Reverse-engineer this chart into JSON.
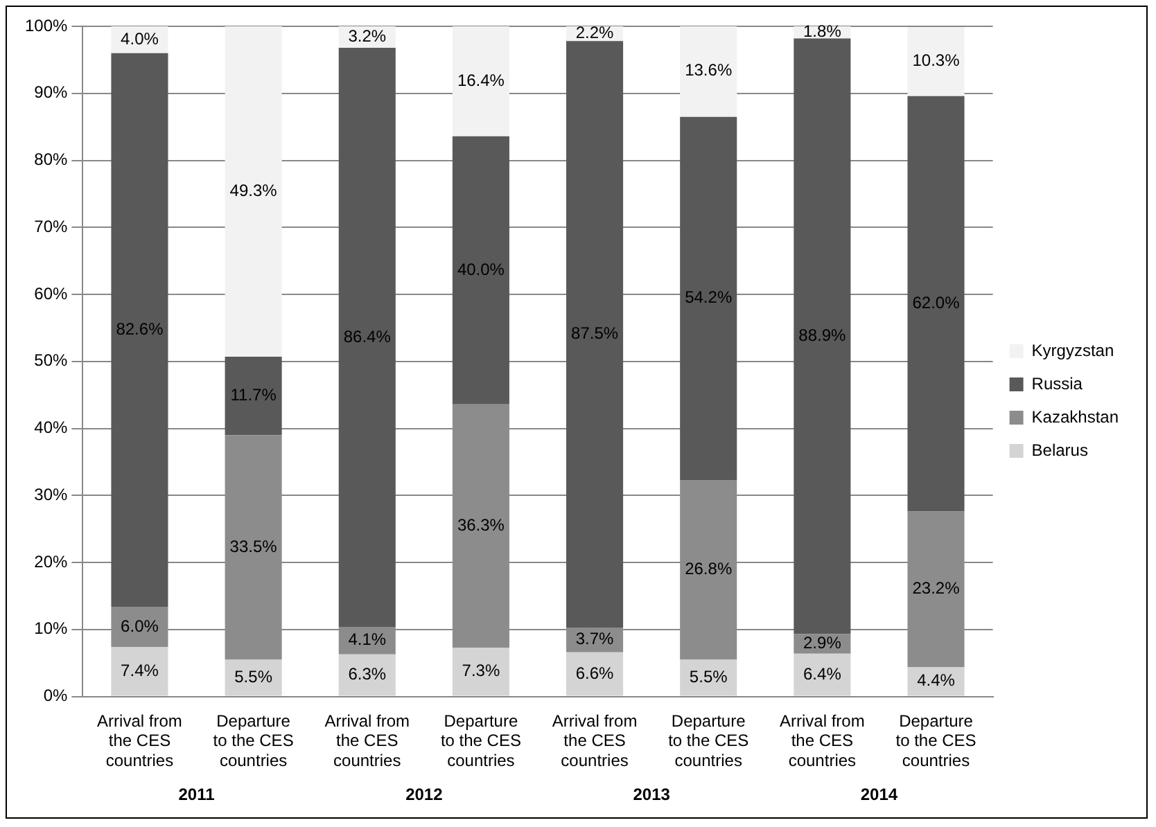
{
  "chart_data": {
    "type": "bar",
    "stacked": true,
    "categories": [
      "Arrival from the CES countries",
      "Departure to the CES countries",
      "Arrival from the CES countries",
      "Departure to the CES countries",
      "Arrival from the CES countries",
      "Departure to the CES countries",
      "Arrival from the CES countries",
      "Departure to the CES countries"
    ],
    "series": [
      {
        "name": "Belarus",
        "color": "#d4d4d4",
        "values": [
          7.4,
          5.5,
          6.3,
          7.3,
          6.6,
          5.5,
          6.4,
          4.4
        ],
        "value_labels": [
          "7.4%",
          "5.5%",
          "6.3%",
          "7.3%",
          "6.6%",
          "5.5%",
          "6.4%",
          "4.4%"
        ]
      },
      {
        "name": "Kazakhstan",
        "color": "#8c8c8c",
        "values": [
          6.0,
          33.5,
          4.1,
          36.3,
          3.7,
          26.8,
          2.9,
          23.2
        ],
        "value_labels": [
          "6.0%",
          "33.5%",
          "4.1%",
          "36.3%",
          "3.7%",
          "26.8%",
          "2.9%",
          "23.2%"
        ]
      },
      {
        "name": "Russia",
        "color": "#595959",
        "values": [
          82.6,
          11.7,
          86.4,
          40.0,
          87.5,
          54.2,
          88.9,
          62.0
        ],
        "value_labels": [
          "82.6%",
          "11.7%",
          "86.4%",
          "40.0%",
          "87.5%",
          "54.2%",
          "88.9%",
          "62.0%"
        ]
      },
      {
        "name": "Kyrgyzstan",
        "color": "#f2f2f2",
        "values": [
          4.0,
          49.3,
          3.2,
          16.4,
          2.2,
          13.6,
          1.8,
          10.3
        ],
        "value_labels": [
          "4.0%",
          "49.3%",
          "3.2%",
          "16.4%",
          "2.2%",
          "13.6%",
          "1.8%",
          "10.3%"
        ]
      }
    ],
    "ylim": [
      0,
      100
    ],
    "yticks": [
      {
        "value": 0,
        "label": "0%"
      },
      {
        "value": 10,
        "label": "10%"
      },
      {
        "value": 20,
        "label": "20%"
      },
      {
        "value": 30,
        "label": "30%"
      },
      {
        "value": 40,
        "label": "40%"
      },
      {
        "value": 50,
        "label": "50%"
      },
      {
        "value": 60,
        "label": "60%"
      },
      {
        "value": 70,
        "label": "70%"
      },
      {
        "value": 80,
        "label": "80%"
      },
      {
        "value": 90,
        "label": "90%"
      },
      {
        "value": 100,
        "label": "100%"
      }
    ],
    "grid": "y",
    "legend": "right",
    "annotations": [
      "2011",
      "2012",
      "2013",
      "2014"
    ]
  }
}
